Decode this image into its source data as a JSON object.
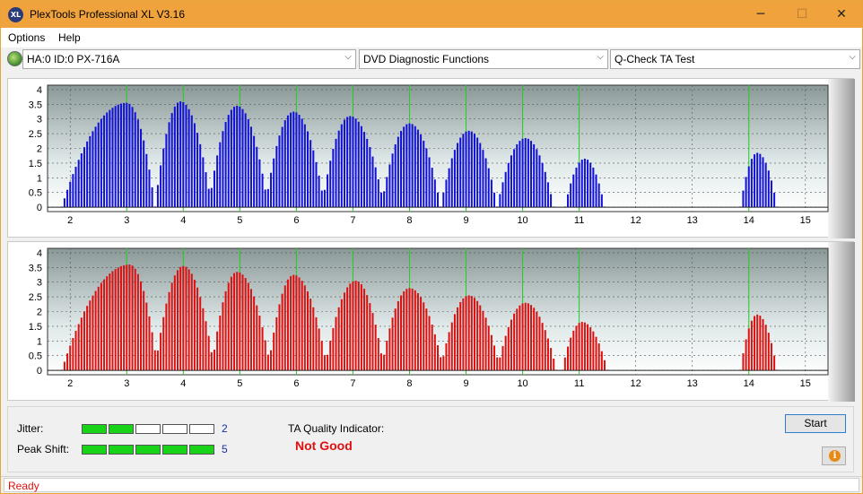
{
  "window": {
    "title": "PlexTools Professional XL V3.16",
    "icon_text": "XL"
  },
  "window_controls": {
    "minimize": "─",
    "maximize": "☐",
    "close": "✕"
  },
  "menu": {
    "items": [
      "Options",
      "Help"
    ]
  },
  "toolbar": {
    "drive": "HA:0 ID:0  PX-716A",
    "function": "DVD Diagnostic Functions",
    "test": "Q-Check TA Test",
    "arrow": "⌵"
  },
  "colors": {
    "chart_top": "#1010d8",
    "chart_bottom": "#dd1010",
    "peak_marker": "#1fd01f",
    "jitter_on": "#19d319",
    "status_text": "#dd1111"
  },
  "chart_data": [
    {
      "type": "bar",
      "name": "top",
      "x_ticks": [
        "2",
        "3",
        "4",
        "5",
        "6",
        "7",
        "8",
        "9",
        "10",
        "11",
        "12",
        "13",
        "14",
        "15"
      ],
      "y_ticks": [
        "0",
        "0.5",
        "1",
        "1.5",
        "2",
        "2.5",
        "3",
        "3.5",
        "4"
      ],
      "xlim": [
        1.6,
        15.4
      ],
      "ylim": [
        -0.15,
        4.15
      ],
      "peak_markers": [
        3,
        4,
        5,
        6,
        7,
        8,
        9,
        10,
        11,
        14
      ],
      "bumps": [
        {
          "center": 3.0,
          "peak": 3.55,
          "from": 1.85,
          "to": 3.5
        },
        {
          "center": 3.95,
          "peak": 3.6,
          "from": 3.5,
          "to": 4.5
        },
        {
          "center": 4.95,
          "peak": 3.45,
          "from": 4.45,
          "to": 5.5
        },
        {
          "center": 5.95,
          "peak": 3.25,
          "from": 5.45,
          "to": 6.5
        },
        {
          "center": 6.95,
          "peak": 3.1,
          "from": 6.45,
          "to": 7.55
        },
        {
          "center": 8.0,
          "peak": 2.85,
          "from": 7.5,
          "to": 8.55
        },
        {
          "center": 9.05,
          "peak": 2.6,
          "from": 8.55,
          "to": 9.55
        },
        {
          "center": 10.05,
          "peak": 2.35,
          "from": 9.55,
          "to": 10.55
        },
        {
          "center": 11.1,
          "peak": 1.65,
          "from": 10.75,
          "to": 11.45
        },
        {
          "center": 14.15,
          "peak": 1.85,
          "from": 13.85,
          "to": 14.5
        }
      ]
    },
    {
      "type": "bar",
      "name": "bottom",
      "x_ticks": [
        "2",
        "3",
        "4",
        "5",
        "6",
        "7",
        "8",
        "9",
        "10",
        "11",
        "12",
        "13",
        "14",
        "15"
      ],
      "y_ticks": [
        "0",
        "0.5",
        "1",
        "1.5",
        "2",
        "2.5",
        "3",
        "3.5",
        "4"
      ],
      "xlim": [
        1.6,
        15.4
      ],
      "ylim": [
        -0.15,
        4.15
      ],
      "peak_markers": [
        3,
        4,
        5,
        6,
        7,
        8,
        9,
        10,
        11,
        14
      ],
      "bumps": [
        {
          "center": 3.05,
          "peak": 3.6,
          "from": 1.85,
          "to": 3.55
        },
        {
          "center": 4.0,
          "peak": 3.55,
          "from": 3.5,
          "to": 4.55
        },
        {
          "center": 4.95,
          "peak": 3.35,
          "from": 4.5,
          "to": 5.55
        },
        {
          "center": 5.95,
          "peak": 3.25,
          "from": 5.5,
          "to": 6.55
        },
        {
          "center": 7.05,
          "peak": 3.05,
          "from": 6.5,
          "to": 7.55
        },
        {
          "center": 8.0,
          "peak": 2.8,
          "from": 7.5,
          "to": 8.6
        },
        {
          "center": 9.05,
          "peak": 2.55,
          "from": 8.55,
          "to": 9.6
        },
        {
          "center": 10.05,
          "peak": 2.3,
          "from": 9.55,
          "to": 10.6
        },
        {
          "center": 11.05,
          "peak": 1.65,
          "from": 10.7,
          "to": 11.5
        },
        {
          "center": 14.15,
          "peak": 1.9,
          "from": 13.85,
          "to": 14.5
        }
      ]
    }
  ],
  "quality": {
    "jitter_label": "Jitter:",
    "jitter_value": "2",
    "jitter_level": 2,
    "peak_shift_label": "Peak Shift:",
    "peak_shift_value": "5",
    "peak_shift_level": 5,
    "segments": 5,
    "ta_label": "TA Quality Indicator:",
    "ta_result": "Not Good"
  },
  "buttons": {
    "start": "Start",
    "info": "i"
  },
  "status": {
    "text": "Ready"
  }
}
